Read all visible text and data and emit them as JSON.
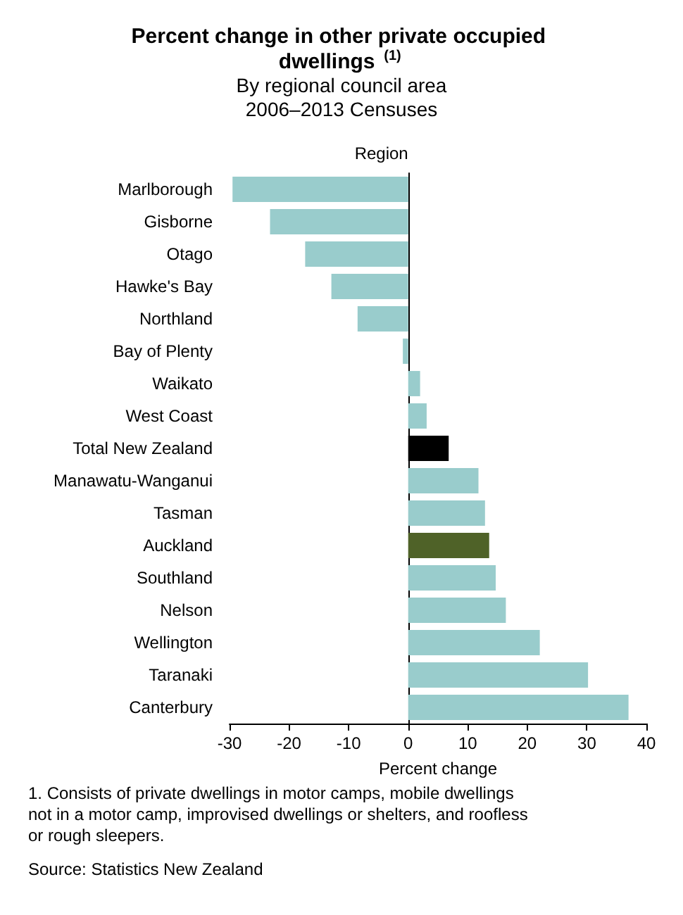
{
  "chart_data": {
    "type": "bar",
    "orientation": "horizontal",
    "title": "Percent change in other private occupied dwellings $^{(1)}$",
    "subtitle": "By regional council area\n2006–2013 Censuses",
    "ylabel": "Region",
    "xlabel": "Percent change",
    "categories": [
      "Marlborough",
      "Gisborne",
      "Otago",
      "Hawke's Bay",
      "Northland",
      "Bay of Plenty",
      "Waikato",
      "West Coast",
      "Total New Zealand",
      "Manawatu-Wanganui",
      "Tasman",
      "Auckland",
      "Southland",
      "Nelson",
      "Wellington",
      "Taranaki",
      "Canterbury"
    ],
    "values": [
      -29.5,
      -23.2,
      -17.3,
      -12.9,
      -8.5,
      -0.9,
      2.0,
      3.1,
      6.8,
      11.8,
      12.9,
      13.6,
      14.7,
      16.4,
      22.1,
      30.2,
      37.0
    ],
    "colors": [
      "#99cccc",
      "#99cccc",
      "#99cccc",
      "#99cccc",
      "#99cccc",
      "#99cccc",
      "#99cccc",
      "#99cccc",
      "#000000",
      "#99cccc",
      "#99cccc",
      "#4f6228",
      "#99cccc",
      "#99cccc",
      "#99cccc",
      "#99cccc",
      "#99cccc"
    ],
    "xlim": [
      -30,
      40
    ],
    "xticks": [
      -30,
      -20,
      -10,
      0,
      10,
      20,
      30,
      40
    ],
    "annotations": [
      "1. Consists of private dwellings in motor camps, mobile dwellings not in a motor camp, improvised dwellings or shelters, and roofless or rough sleepers.",
      "Source: Statistics New Zealand"
    ]
  }
}
